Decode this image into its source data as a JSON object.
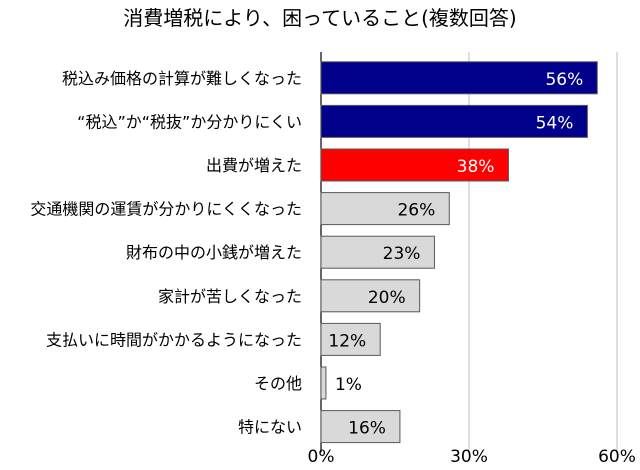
{
  "chart_data": {
    "type": "bar",
    "orientation": "horizontal",
    "title": "消費増税により、困っていること(複数回答)",
    "xlabel": "",
    "ylabel": "",
    "xlim": [
      0,
      60
    ],
    "x_ticks": [
      0,
      30,
      60
    ],
    "x_tick_labels": [
      "0%",
      "30%",
      "60%"
    ],
    "grid": true,
    "legend": "none",
    "categories": [
      "税込み価格の計算が難しくなった",
      "“税込”か“税抜”か分かりにくい",
      "出費が増えた",
      "交通機関の運賃が分かりにくくなった",
      "財布の中の小銭が増えた",
      "家計が苦しくなった",
      "支払いに時間がかかるようになった",
      "その他",
      "特にない"
    ],
    "values": [
      56,
      54,
      38,
      26,
      23,
      20,
      12,
      1,
      16
    ],
    "data_labels": [
      "56%",
      "54%",
      "38%",
      "26%",
      "23%",
      "20%",
      "12%",
      "1%",
      "16%"
    ],
    "bar_colors": [
      "#00008b",
      "#00008b",
      "#ff0000",
      "#d9d9d9",
      "#d9d9d9",
      "#d9d9d9",
      "#d9d9d9",
      "#d9d9d9",
      "#d9d9d9"
    ],
    "label_colors": [
      "#ffffff",
      "#ffffff",
      "#ffffff",
      "#000000",
      "#000000",
      "#000000",
      "#000000",
      "#000000",
      "#000000"
    ]
  }
}
